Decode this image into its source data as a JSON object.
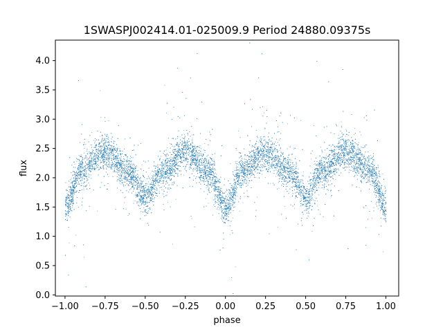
{
  "chart_data": {
    "type": "scatter",
    "title": "1SWASPJ002414.01-025009.9 Period 24880.09375s",
    "xlabel": "phase",
    "ylabel": "flux",
    "xlim": [
      -1.06,
      1.08
    ],
    "ylim": [
      -0.02,
      4.35
    ],
    "xticks": [
      -1.0,
      -0.75,
      -0.5,
      -0.25,
      0.0,
      0.25,
      0.5,
      0.75,
      1.0
    ],
    "xtick_labels": [
      "−1.00",
      "−0.75",
      "−0.50",
      "−0.25",
      "0.00",
      "0.25",
      "0.50",
      "0.75",
      "1.00"
    ],
    "yticks": [
      0.0,
      0.5,
      1.0,
      1.5,
      2.0,
      2.5,
      3.0,
      3.5,
      4.0
    ],
    "ytick_labels": [
      "0.0",
      "0.5",
      "1.0",
      "1.5",
      "2.0",
      "2.5",
      "3.0",
      "3.5",
      "4.0"
    ],
    "grid": false,
    "marker_color": "#1f77b4",
    "series": [
      {
        "name": "",
        "profile_phase": [
          -1.0,
          -0.9,
          -0.75,
          -0.6,
          -0.5,
          -0.4,
          -0.25,
          -0.1,
          0.0,
          0.1,
          0.25,
          0.4,
          0.5,
          0.6,
          0.75,
          0.9,
          1.0
        ],
        "profile_flux": [
          1.5,
          2.15,
          2.45,
          2.1,
          1.65,
          2.1,
          2.45,
          2.1,
          1.45,
          2.1,
          2.45,
          2.1,
          1.65,
          2.1,
          2.45,
          2.15,
          1.5
        ]
      }
    ]
  }
}
